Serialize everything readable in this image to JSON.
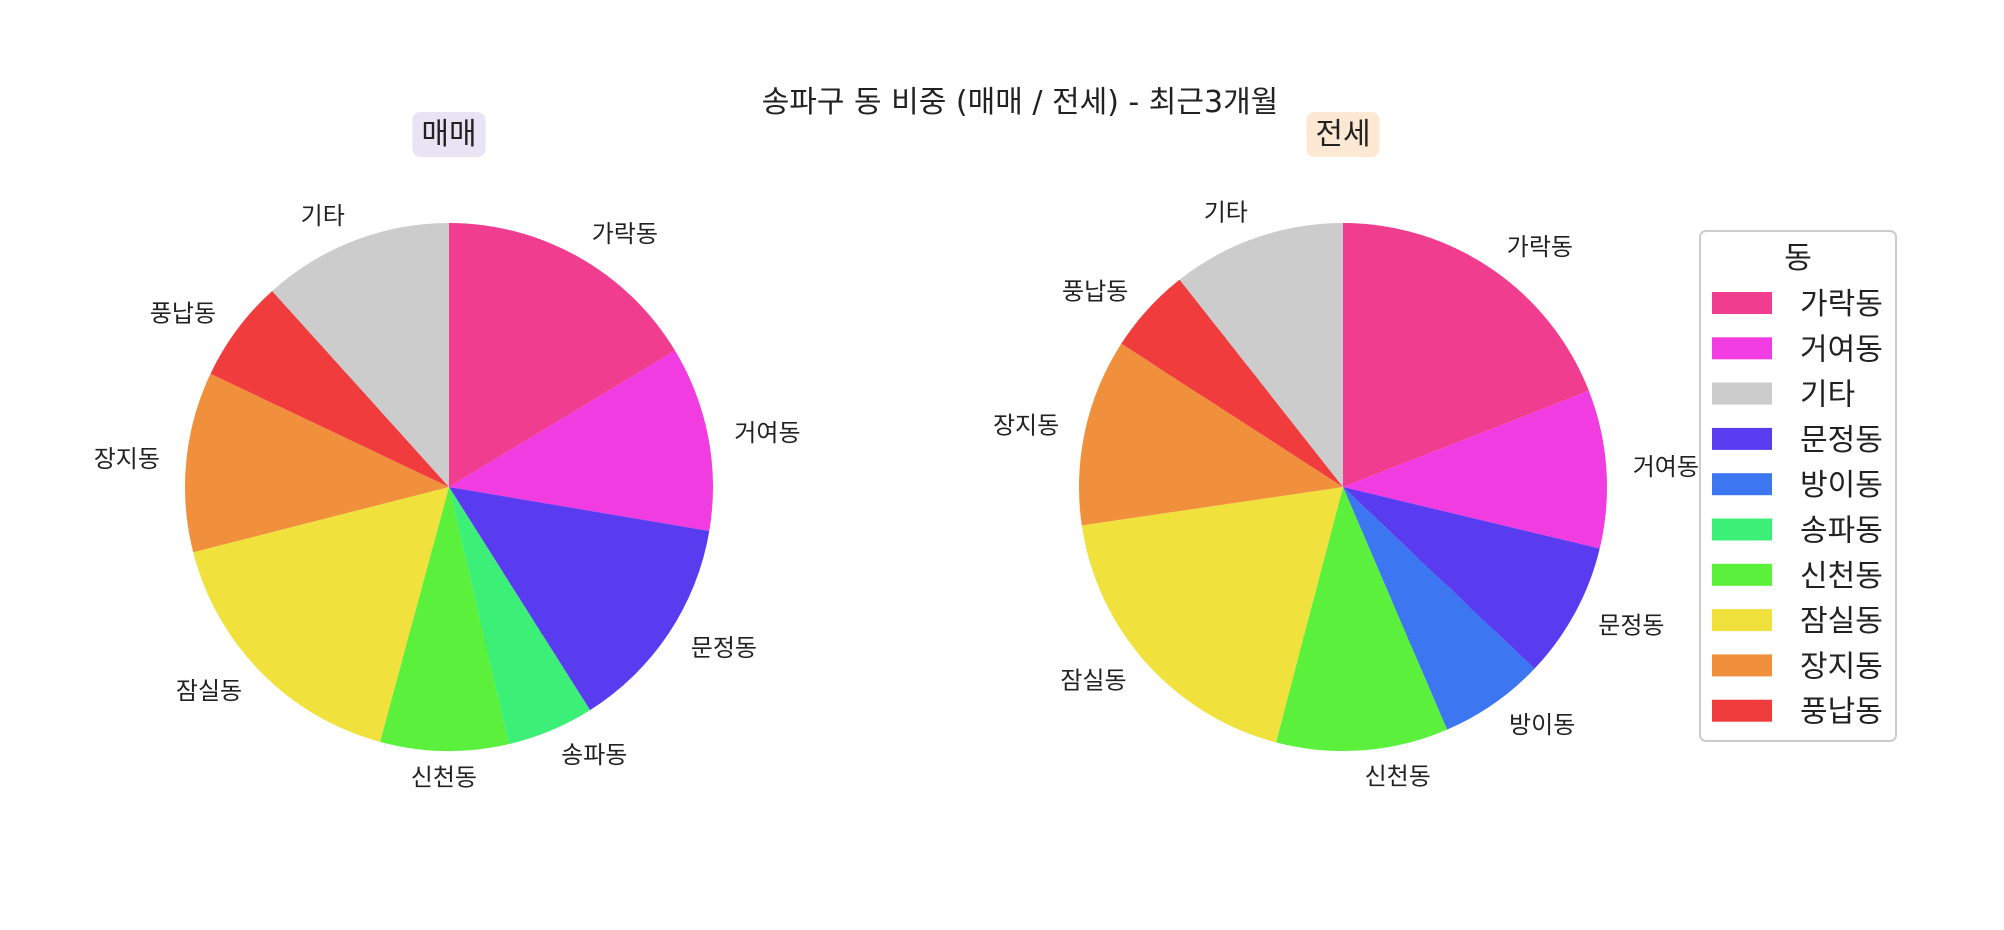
{
  "chart_data": {
    "type": "pie",
    "title": "송파구 동 비중 (매매 / 전세) - 최근3개월",
    "charts": [
      {
        "title": "매매",
        "title_bg": "#e8e4f4",
        "slices": [
          {
            "label": "가락동",
            "value": 175,
            "pct": "16.4% (175)"
          },
          {
            "label": "거여동",
            "value": 121,
            "pct": "11.3% (121)"
          },
          {
            "label": "문정동",
            "value": 143,
            "pct": "13.4% (143)"
          },
          {
            "label": "송파동",
            "value": 57,
            "pct": "5.3% (57)"
          },
          {
            "label": "신천동",
            "value": 84,
            "pct": "7.9% (84)"
          },
          {
            "label": "잠실동",
            "value": 180,
            "pct": "16.8% (180)"
          },
          {
            "label": "장지동",
            "value": 118,
            "pct": "11.0% (118)"
          },
          {
            "label": "풍납동",
            "value": 67,
            "pct": "6.3% (67)"
          },
          {
            "label": "기타",
            "value": 125,
            "pct": "11.7% (125)"
          }
        ]
      },
      {
        "title": "전세",
        "title_bg": "#fde9d3",
        "slices": [
          {
            "label": "가락동",
            "value": 684,
            "pct": "19.1% (684)"
          },
          {
            "label": "거여동",
            "value": 347,
            "pct": "9.7% (347)"
          },
          {
            "label": "문정동",
            "value": 299,
            "pct": "8.3% (299)"
          },
          {
            "label": "방이동",
            "value": 232,
            "pct": "6.5% (232)"
          },
          {
            "label": "신천동",
            "value": 378,
            "pct": "10.5% (378)"
          },
          {
            "label": "잠실동",
            "value": 667,
            "pct": "18.6% (667)"
          },
          {
            "label": "장지동",
            "value": 411,
            "pct": "11.5% (411)"
          },
          {
            "label": "풍납동",
            "value": 188,
            "pct": "5.2% (188)"
          },
          {
            "label": "기타",
            "value": 381,
            "pct": "10.6% (381)"
          }
        ]
      }
    ],
    "legend": {
      "title": "동",
      "placement": "right",
      "items": [
        "가락동",
        "거여동",
        "기타",
        "문정동",
        "방이동",
        "송파동",
        "신천동",
        "잠실동",
        "장지동",
        "풍납동"
      ]
    },
    "colors": {
      "가락동": "#f03d8f",
      "거여동": "#f03ce0",
      "기타": "#cccccc",
      "문정동": "#5a3cf0",
      "방이동": "#3c76f0",
      "송파동": "#3cf077",
      "신천동": "#5af03c",
      "잠실동": "#f0e13c",
      "장지동": "#f08f3c",
      "풍납동": "#f03c3c"
    }
  }
}
